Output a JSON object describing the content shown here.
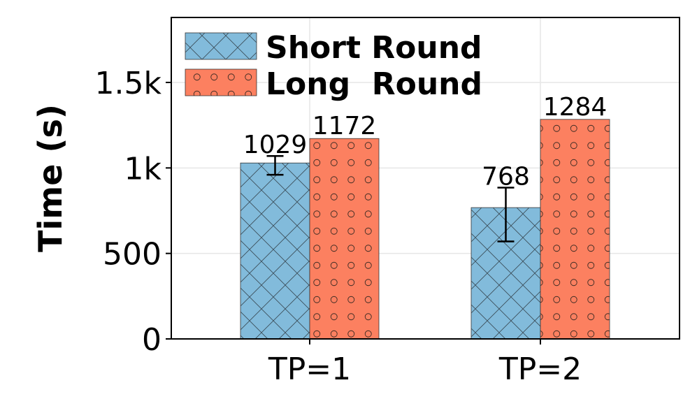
{
  "chart_data": {
    "type": "bar",
    "title": "",
    "xlabel": "",
    "ylabel": "Time (s)",
    "categories": [
      "TP=1",
      "TP=2"
    ],
    "ylim": [
      0,
      1880
    ],
    "yticks": [
      0,
      500,
      1000,
      1500
    ],
    "ytick_labels": [
      "0",
      "500",
      "1k",
      "1.5k"
    ],
    "grid": true,
    "legend_position": "top-left",
    "series": [
      {
        "name": "Short Round",
        "legend_label": "Short Round",
        "values": [
          1029,
          768
        ],
        "labels": [
          "1029",
          "768"
        ],
        "error": [
          [
            960,
            1070
          ],
          [
            570,
            885
          ]
        ],
        "color": "#82bbdb",
        "pattern": "crosshatch"
      },
      {
        "name": "Long Round",
        "legend_label": "Long  Round",
        "values": [
          1172,
          1284
        ],
        "labels": [
          "1172",
          "1284"
        ],
        "color": "#fc8060",
        "pattern": "circles"
      }
    ]
  }
}
